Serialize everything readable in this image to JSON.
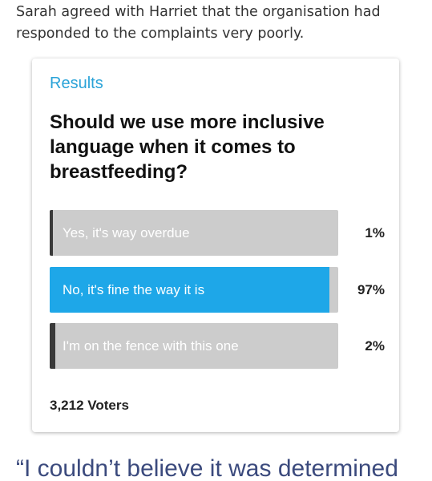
{
  "intro": "Sarah agreed with Harriet that the organisation had responded to the complaints very poorly.",
  "poll": {
    "heading": "Results",
    "question": "Should we use more inclusive language when it comes to breastfeeding?",
    "options": [
      "Yes, it's way overdue",
      "No, it's fine the way it is",
      "I'm on the fence with this one"
    ],
    "values": [
      1,
      97,
      2
    ],
    "value_labels": [
      "1%",
      "97%",
      "2%"
    ],
    "selected": 1,
    "selected_color": "#1ea7e8",
    "fill_color": "#3a3a3a",
    "track_color": "#cccccc",
    "voters": "3,212 Voters"
  },
  "quote": "“I couldn’t believe it was determined"
}
